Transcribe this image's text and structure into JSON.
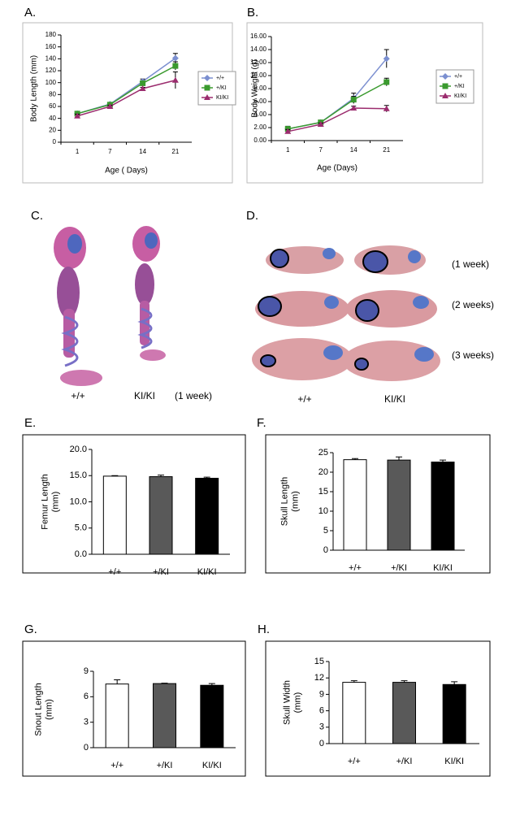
{
  "chart_data": [
    {
      "type": "line",
      "panel": "A.",
      "ylabel": [
        "Body Length (mm)"
      ],
      "xlabel": "Age ( Days)",
      "categories": [
        "1",
        "7",
        "14",
        "21"
      ],
      "ylim": [
        0,
        180
      ],
      "yticks": [
        0,
        20,
        40,
        60,
        80,
        100,
        120,
        140,
        160,
        180
      ],
      "series": [
        {
          "name": "+/+",
          "color": "#7b8fd0",
          "marker": "diamond",
          "values": [
            48,
            64,
            102,
            141
          ],
          "errors": [
            3,
            2,
            4,
            8
          ]
        },
        {
          "name": "+/KI",
          "color": "#3a9a2e",
          "marker": "square",
          "values": [
            48,
            63,
            99,
            128
          ],
          "errors": [
            3,
            2,
            3,
            7
          ]
        },
        {
          "name": "KI/KI",
          "color": "#9b2c6e",
          "marker": "triangle",
          "values": [
            44,
            60,
            90,
            104
          ],
          "errors": [
            3,
            2,
            2,
            14
          ]
        }
      ]
    },
    {
      "type": "line",
      "panel": "B.",
      "ylabel": [
        "Body Weight (g)"
      ],
      "xlabel": "Age (Days)",
      "categories": [
        "1",
        "7",
        "14",
        "21"
      ],
      "ylim": [
        0,
        16
      ],
      "yticks": [
        {
          "value": 0,
          "label": "0.00"
        },
        {
          "value": 2,
          "label": "2.00"
        },
        {
          "value": 4,
          "label": "4.00"
        },
        {
          "value": 6,
          "label": "6.00"
        },
        {
          "value": 8,
          "label": "8.00"
        },
        {
          "value": 10,
          "label": "10.00"
        },
        {
          "value": 12,
          "label": "12.00"
        },
        {
          "value": 14,
          "label": "14.00"
        },
        {
          "value": 16,
          "label": "16.00"
        }
      ],
      "series": [
        {
          "name": "+/+",
          "color": "#7b8fd0",
          "marker": "diamond",
          "values": [
            1.8,
            2.8,
            6.5,
            12.6
          ],
          "errors": [
            0.4,
            0.3,
            0.8,
            1.4
          ]
        },
        {
          "name": "+/KI",
          "color": "#3a9a2e",
          "marker": "square",
          "values": [
            1.8,
            2.8,
            6.3,
            9.0
          ],
          "errors": [
            0.3,
            0.2,
            0.5,
            0.6
          ]
        },
        {
          "name": "KI/KI",
          "color": "#9b2c6e",
          "marker": "triangle",
          "values": [
            1.4,
            2.5,
            5.0,
            4.9
          ],
          "errors": [
            0.3,
            0.2,
            0.3,
            0.5
          ]
        }
      ]
    },
    {
      "type": "bar",
      "panel": "E.",
      "ylabel": [
        "Femur Length",
        "(mm)"
      ],
      "categories": [
        "+/+",
        "+/KI",
        "KI/KI"
      ],
      "colors": [
        "#ffffff",
        "#595959",
        "#000000"
      ],
      "values": [
        14.9,
        14.8,
        14.5
      ],
      "errors": [
        0.1,
        0.3,
        0.2
      ],
      "ylim": [
        0,
        20
      ],
      "yticks": [
        {
          "value": 0,
          "label": "0.0"
        },
        {
          "value": 5,
          "label": "5.0"
        },
        {
          "value": 10,
          "label": "10.0"
        },
        {
          "value": 15,
          "label": "15.0"
        },
        {
          "value": 20,
          "label": "20.0"
        }
      ]
    },
    {
      "type": "bar",
      "panel": "F.",
      "ylabel": [
        "Skull Length",
        "(mm)"
      ],
      "categories": [
        "+/+",
        "+/KI",
        "KI/KI"
      ],
      "colors": [
        "#ffffff",
        "#595959",
        "#000000"
      ],
      "values": [
        23.2,
        23.1,
        22.6
      ],
      "errors": [
        0.3,
        0.8,
        0.5
      ],
      "ylim": [
        0,
        25
      ],
      "yticks": [
        0,
        5,
        10,
        15,
        20,
        25
      ]
    },
    {
      "type": "bar",
      "panel": "G.",
      "ylabel": [
        "Snout Length",
        "(mm)"
      ],
      "categories": [
        "+/+",
        "+/KI",
        "KI/KI"
      ],
      "colors": [
        "#ffffff",
        "#595959",
        "#000000"
      ],
      "values": [
        7.5,
        7.55,
        7.35
      ],
      "errors": [
        0.5,
        0.05,
        0.2
      ],
      "ylim": [
        0,
        9
      ],
      "yticks": [
        0,
        3,
        6,
        9
      ]
    },
    {
      "type": "bar",
      "panel": "H.",
      "ylabel": [
        "Skull Width",
        "(mm)"
      ],
      "categories": [
        "+/+",
        "+/KI",
        "KI/KI"
      ],
      "colors": [
        "#ffffff",
        "#595959",
        "#000000"
      ],
      "values": [
        11.2,
        11.2,
        10.8
      ],
      "errors": [
        0.3,
        0.3,
        0.5
      ],
      "ylim": [
        0,
        15
      ],
      "yticks": [
        0,
        3,
        6,
        9,
        12,
        15
      ]
    }
  ],
  "photos": {
    "c": {
      "panel": "C.",
      "captions": [
        "+/+",
        "KI/KI",
        "(1 week)"
      ]
    },
    "d": {
      "panel": "D.",
      "ages": [
        "(1 week)",
        "(2 weeks)",
        "(3 weeks)"
      ],
      "captions": [
        "+/+",
        "KI/KI"
      ]
    }
  }
}
